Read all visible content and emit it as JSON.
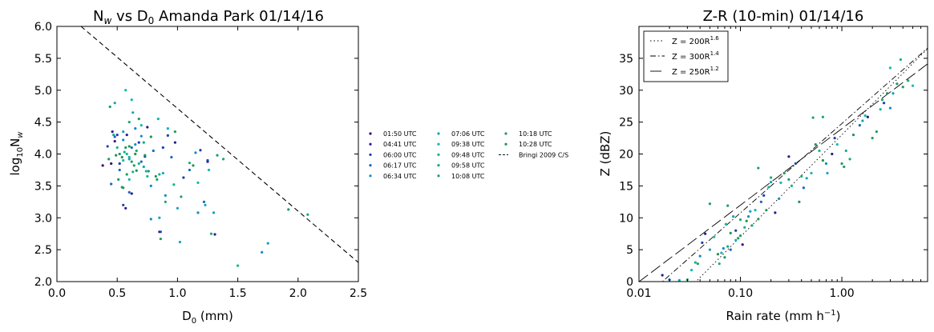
{
  "chart_data": [
    {
      "type": "scatter",
      "title_main": "N",
      "title_sub1": "w",
      "title_mid": " vs D",
      "title_sub2": "0",
      "title_rest": " Amanda Park 01/14/16",
      "xlabel_main": "D",
      "xlabel_sub": "0",
      "xlabel_rest": " (mm)",
      "ylabel_main": "log",
      "ylabel_sub1": "10",
      "ylabel_mid": "N",
      "ylabel_sub2": "w",
      "xlim": [
        0.0,
        2.5
      ],
      "ylim": [
        2.0,
        6.0
      ],
      "xticks": [
        "0.0",
        "0.5",
        "1.0",
        "1.5",
        "2.0",
        "2.5"
      ],
      "yticks": [
        "2.0",
        "2.5",
        "3.0",
        "3.5",
        "4.0",
        "4.5",
        "5.0",
        "5.5",
        "6.0"
      ],
      "series": [
        {
          "name": "01:50 UTC",
          "color": "#3a0e6e",
          "points": [
            [
              0.38,
              3.82
            ],
            [
              0.45,
              3.85
            ],
            [
              0.48,
              4.2
            ]
          ]
        },
        {
          "name": "04:41 UTC",
          "color": "#2a1c8c",
          "points": [
            [
              0.46,
              4.35
            ],
            [
              0.58,
              4.3
            ],
            [
              0.75,
              4.42
            ],
            [
              0.98,
              4.18
            ],
            [
              0.62,
              3.38
            ],
            [
              0.57,
              3.15
            ],
            [
              1.25,
              3.88
            ],
            [
              0.85,
              2.78
            ],
            [
              1.31,
              2.74
            ]
          ]
        },
        {
          "name": "06:00 UTC",
          "color": "#1f3fb0",
          "points": [
            [
              0.42,
              4.12
            ],
            [
              0.5,
              4.3
            ],
            [
              0.68,
              4.18
            ],
            [
              0.88,
              4.1
            ],
            [
              1.05,
              3.63
            ],
            [
              0.92,
              4.29
            ],
            [
              1.19,
              4.06
            ],
            [
              0.86,
              2.78
            ],
            [
              0.52,
              3.85
            ],
            [
              0.73,
              3.96
            ],
            [
              1.25,
              3.9
            ],
            [
              0.55,
              3.2
            ]
          ]
        },
        {
          "name": "06:17 UTC",
          "color": "#1a66c4",
          "points": [
            [
              0.48,
              4.27
            ],
            [
              0.52,
              3.75
            ],
            [
              0.62,
              4.1
            ],
            [
              0.7,
              3.88
            ],
            [
              0.8,
              4.05
            ],
            [
              0.95,
              3.95
            ],
            [
              1.1,
              3.75
            ],
            [
              1.22,
              3.25
            ],
            [
              0.6,
              3.4
            ],
            [
              0.45,
              3.53
            ]
          ]
        },
        {
          "name": "06:34 UTC",
          "color": "#1589c6",
          "points": [
            [
              0.55,
              4.22
            ],
            [
              0.65,
              4.15
            ],
            [
              0.78,
              3.5
            ],
            [
              0.9,
              3.35
            ],
            [
              1.17,
              3.08
            ],
            [
              0.65,
              4.4
            ],
            [
              0.7,
              4.28
            ],
            [
              1.15,
              4.02
            ],
            [
              1.7,
              2.46
            ],
            [
              0.78,
              2.98
            ]
          ]
        },
        {
          "name": "07:06 UTC",
          "color": "#12a2be",
          "points": [
            [
              0.48,
              4.8
            ],
            [
              0.55,
              4.35
            ],
            [
              0.72,
              3.8
            ],
            [
              0.88,
              3.7
            ],
            [
              1.0,
              3.15
            ],
            [
              1.23,
              3.2
            ],
            [
              1.3,
              3.08
            ],
            [
              0.85,
              3.0
            ],
            [
              1.02,
              2.62
            ],
            [
              0.63,
              4.65
            ],
            [
              0.6,
              3.92
            ],
            [
              1.75,
              2.6
            ]
          ]
        },
        {
          "name": "09:38 UTC",
          "color": "#11b7ad",
          "points": [
            [
              0.57,
              5.0
            ],
            [
              0.62,
              4.85
            ],
            [
              0.7,
              4.45
            ],
            [
              0.84,
              4.55
            ],
            [
              0.6,
              3.6
            ],
            [
              0.74,
              3.73
            ],
            [
              0.92,
              4.4
            ],
            [
              1.26,
              3.75
            ],
            [
              1.17,
              3.55
            ],
            [
              0.55,
              3.9
            ]
          ]
        },
        {
          "name": "09:48 UTC",
          "color": "#14b48c",
          "points": [
            [
              0.5,
              4.1
            ],
            [
              0.56,
              4.03
            ],
            [
              0.6,
              3.95
            ],
            [
              0.68,
              3.85
            ],
            [
              0.75,
              3.65
            ],
            [
              0.85,
              3.68
            ],
            [
              0.63,
              3.72
            ],
            [
              0.58,
              4.0
            ],
            [
              0.97,
              3.52
            ],
            [
              1.5,
              2.25
            ]
          ]
        },
        {
          "name": "09:58 UTC",
          "color": "#18aa76",
          "points": [
            [
              0.47,
              4.3
            ],
            [
              0.6,
              4.5
            ],
            [
              0.66,
              4.05
            ],
            [
              0.72,
              4.18
            ],
            [
              1.1,
              3.86
            ],
            [
              0.9,
              3.25
            ],
            [
              1.28,
              2.75
            ],
            [
              1.38,
              3.92
            ],
            [
              2.08,
              3.05
            ]
          ]
        },
        {
          "name": "10:08 UTC",
          "color": "#1b9e68",
          "points": [
            [
              0.44,
              4.74
            ],
            [
              0.52,
              4.0
            ],
            [
              0.58,
              3.68
            ],
            [
              0.64,
              3.82
            ],
            [
              0.83,
              3.6
            ],
            [
              1.03,
              3.33
            ],
            [
              1.33,
              3.98
            ],
            [
              0.68,
              4.55
            ],
            [
              0.54,
              3.48
            ]
          ]
        },
        {
          "name": "10:18 UTC",
          "color": "#229a5e",
          "points": [
            [
              0.43,
              3.92
            ],
            [
              0.51,
              3.6
            ],
            [
              0.55,
              3.47
            ],
            [
              0.62,
              3.88
            ],
            [
              0.76,
              3.73
            ],
            [
              0.86,
              2.67
            ],
            [
              0.98,
              4.35
            ],
            [
              0.57,
              4.1
            ],
            [
              1.92,
              3.13
            ]
          ]
        },
        {
          "name": "10:28 UTC",
          "color": "#239150",
          "points": [
            [
              0.49,
              3.98
            ],
            [
              0.54,
              3.95
            ],
            [
              0.66,
              3.74
            ],
            [
              0.78,
              4.27
            ],
            [
              0.82,
              3.65
            ],
            [
              0.65,
              4.0
            ],
            [
              0.73,
              3.98
            ],
            [
              0.6,
              4.12
            ],
            [
              1.13,
              3.82
            ]
          ]
        }
      ],
      "reference_line": {
        "name": "Bringi 2009 C/S",
        "x": [
          0.2,
          2.5
        ],
        "y": [
          6.0,
          2.3
        ],
        "style": "dashed"
      },
      "legend_placement": "right, outside"
    },
    {
      "type": "scatter",
      "title": "Z-R (10-min) 01/14/16",
      "xlabel": "Rain rate (mm h",
      "xlabel_sup": "−1",
      "xlabel_end": ")",
      "ylabel": "Z (dBZ)",
      "xscale": "log",
      "xlim": [
        0.01,
        7.0
      ],
      "ylim": [
        0,
        40
      ],
      "xticks": [
        "0.01",
        "0.10",
        "1.00"
      ],
      "yticks": [
        "0",
        "5",
        "10",
        "15",
        "20",
        "25",
        "30",
        "35"
      ],
      "fit_lines": [
        {
          "label": "Z = 200R",
          "exp": "1.6",
          "a": 200,
          "b": 1.6,
          "style": "dotted"
        },
        {
          "label": "Z = 300R",
          "exp": "1.4",
          "a": 300,
          "b": 1.4,
          "style": "dashdot"
        },
        {
          "label": "Z = 250R",
          "exp": "1.2",
          "a": 250,
          "b": 1.2,
          "style": "longdash"
        }
      ],
      "legend_placement": "upper left",
      "points": [
        [
          0.017,
          1.0,
          "#2a1c8c"
        ],
        [
          0.02,
          0.3,
          "#1a66c4"
        ],
        [
          0.025,
          0.2,
          "#12a2be"
        ],
        [
          0.03,
          0.3,
          "#18aa76"
        ],
        [
          0.033,
          1.8,
          "#11b7ad"
        ],
        [
          0.036,
          3.0,
          "#14b48c"
        ],
        [
          0.038,
          2.8,
          "#229a5e"
        ],
        [
          0.04,
          4.0,
          "#1589c6"
        ],
        [
          0.042,
          6.1,
          "#1f3fb0"
        ],
        [
          0.045,
          7.5,
          "#2a1c8c"
        ],
        [
          0.05,
          5.0,
          "#12a2be"
        ],
        [
          0.05,
          12.2,
          "#1b9e68"
        ],
        [
          0.055,
          7.0,
          "#14b48c"
        ],
        [
          0.06,
          4.3,
          "#239150"
        ],
        [
          0.062,
          2.8,
          "#18aa76"
        ],
        [
          0.065,
          4.5,
          "#11b7ad"
        ],
        [
          0.068,
          5.2,
          "#1589c6"
        ],
        [
          0.07,
          3.8,
          "#229a5e"
        ],
        [
          0.072,
          9.0,
          "#14b48c"
        ],
        [
          0.075,
          5.5,
          "#18aa76"
        ],
        [
          0.075,
          11.9,
          "#1b9e68"
        ],
        [
          0.08,
          5.0,
          "#1a66c4"
        ],
        [
          0.08,
          7.6,
          "#239150"
        ],
        [
          0.085,
          10.2,
          "#12a2be"
        ],
        [
          0.09,
          6.5,
          "#11b7ad"
        ],
        [
          0.09,
          8.0,
          "#1f3fb0"
        ],
        [
          0.095,
          6.8,
          "#229a5e"
        ],
        [
          0.1,
          9.7,
          "#18aa76"
        ],
        [
          0.1,
          7.2,
          "#1b9e68"
        ],
        [
          0.105,
          5.8,
          "#2a1c8c"
        ],
        [
          0.11,
          8.5,
          "#14b48c"
        ],
        [
          0.115,
          9.5,
          "#239150"
        ],
        [
          0.12,
          10.2,
          "#1589c6"
        ],
        [
          0.125,
          11.0,
          "#12a2be"
        ],
        [
          0.13,
          8.8,
          "#18aa76"
        ],
        [
          0.14,
          11.2,
          "#11b7ad"
        ],
        [
          0.15,
          9.8,
          "#229a5e"
        ],
        [
          0.15,
          17.8,
          "#1b9e68"
        ],
        [
          0.16,
          12.5,
          "#1a66c4"
        ],
        [
          0.17,
          13.5,
          "#1f3fb0"
        ],
        [
          0.18,
          11.2,
          "#239150"
        ],
        [
          0.19,
          14.8,
          "#14b48c"
        ],
        [
          0.2,
          15.6,
          "#12a2be"
        ],
        [
          0.2,
          16.3,
          "#18aa76"
        ],
        [
          0.22,
          10.8,
          "#2a1c8c"
        ],
        [
          0.24,
          13.0,
          "#1589c6"
        ],
        [
          0.25,
          15.5,
          "#11b7ad"
        ],
        [
          0.27,
          17.0,
          "#229a5e"
        ],
        [
          0.3,
          19.6,
          "#2a1c8c"
        ],
        [
          0.3,
          16.0,
          "#1b9e68"
        ],
        [
          0.32,
          15.0,
          "#14b48c"
        ],
        [
          0.35,
          18.5,
          "#1f3fb0"
        ],
        [
          0.38,
          12.5,
          "#239150"
        ],
        [
          0.4,
          16.5,
          "#18aa76"
        ],
        [
          0.42,
          14.7,
          "#1a66c4"
        ],
        [
          0.45,
          16.2,
          "#12a2be"
        ],
        [
          0.5,
          17.0,
          "#11b7ad"
        ],
        [
          0.52,
          25.7,
          "#1b9e68"
        ],
        [
          0.55,
          21.5,
          "#229a5e"
        ],
        [
          0.6,
          20.5,
          "#14b48c"
        ],
        [
          0.65,
          25.8,
          "#18aa76"
        ],
        [
          0.65,
          19.0,
          "#239150"
        ],
        [
          0.7,
          18.5,
          "#1589c6"
        ],
        [
          0.72,
          17.0,
          "#12a2be"
        ],
        [
          0.8,
          20.0,
          "#2a1c8c"
        ],
        [
          0.85,
          22.5,
          "#1f3fb0"
        ],
        [
          0.9,
          21.5,
          "#11b7ad"
        ],
        [
          1.0,
          18.5,
          "#229a5e"
        ],
        [
          1.05,
          18.0,
          "#1b9e68"
        ],
        [
          1.1,
          20.5,
          "#14b48c"
        ],
        [
          1.2,
          19.2,
          "#18aa76"
        ],
        [
          1.3,
          23.0,
          "#239150"
        ],
        [
          1.5,
          24.5,
          "#1a66c4"
        ],
        [
          1.6,
          25.2,
          "#12a2be"
        ],
        [
          1.7,
          26.0,
          "#11b7ad"
        ],
        [
          1.8,
          25.8,
          "#2a1c8c"
        ],
        [
          2.0,
          22.5,
          "#229a5e"
        ],
        [
          2.2,
          23.5,
          "#1b9e68"
        ],
        [
          2.4,
          27.0,
          "#14b48c"
        ],
        [
          2.5,
          28.5,
          "#18aa76"
        ],
        [
          2.6,
          28.0,
          "#1f3fb0"
        ],
        [
          2.8,
          29.5,
          "#239150"
        ],
        [
          3.0,
          33.5,
          "#11b7ad"
        ],
        [
          3.0,
          27.2,
          "#1589c6"
        ],
        [
          3.2,
          29.5,
          "#12a2be"
        ],
        [
          3.5,
          31.0,
          "#229a5e"
        ],
        [
          3.8,
          34.8,
          "#14b48c"
        ],
        [
          4.0,
          30.5,
          "#1b9e68"
        ],
        [
          4.5,
          31.5,
          "#18aa76"
        ],
        [
          5.0,
          30.7,
          "#11b7ad"
        ]
      ]
    }
  ]
}
